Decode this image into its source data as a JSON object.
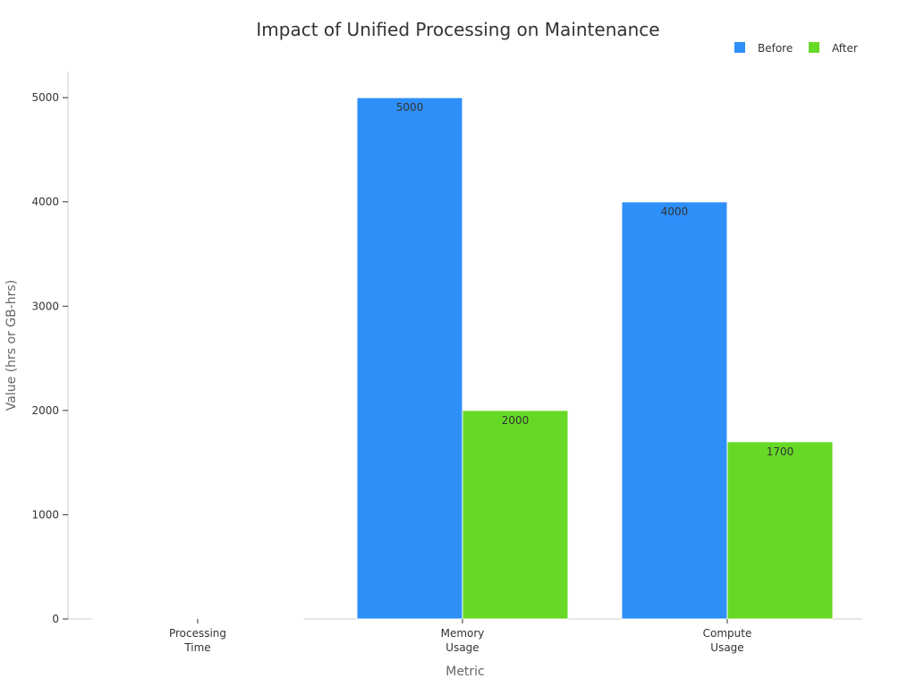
{
  "chart_data": {
    "type": "bar",
    "title": "Impact of Unified Processing on Maintenance",
    "xlabel": "Metric",
    "ylabel": "Value (hrs or GB-hrs)",
    "categories": [
      [
        "Processing",
        "Time"
      ],
      [
        "Memory",
        "Usage"
      ],
      [
        "Compute",
        "Usage"
      ]
    ],
    "series": [
      {
        "name": "Before",
        "color": "#2e8ff8",
        "values": [
          5,
          5000,
          4000
        ],
        "labels": [
          "",
          "5000",
          "4000"
        ]
      },
      {
        "name": "After",
        "color": "#66d926",
        "values": [
          2,
          2000,
          1700
        ],
        "labels": [
          "",
          "2000",
          "1700"
        ]
      }
    ],
    "ylim": [
      0,
      5250
    ],
    "yticks": [
      0,
      1000,
      2000,
      3000,
      4000,
      5000
    ],
    "grid": false,
    "legend": "top-right"
  }
}
